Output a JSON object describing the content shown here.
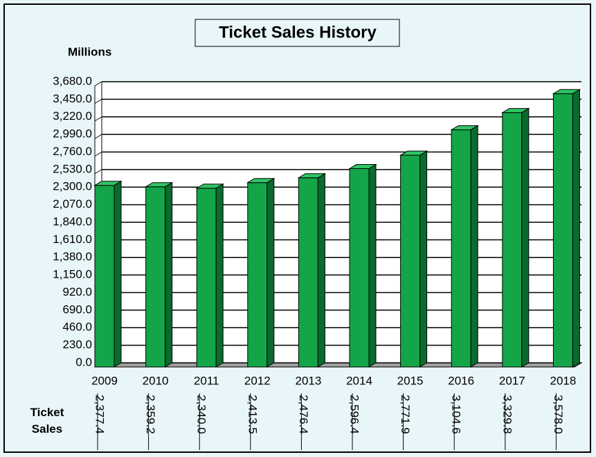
{
  "chart_data": {
    "type": "bar",
    "title": "Ticket Sales History",
    "y_label": "Millions",
    "categories": [
      "2009",
      "2010",
      "2011",
      "2012",
      "2013",
      "2014",
      "2015",
      "2016",
      "2017",
      "2018"
    ],
    "series": [
      {
        "name": "Ticket Sales",
        "color": "#13a548",
        "values": [
          2377.4,
          2359.2,
          2340.0,
          2413.5,
          2476.4,
          2596.4,
          2771.9,
          3104.6,
          3329.8,
          3578.0
        ],
        "value_labels": [
          "2,377.4",
          "2,359.2",
          "2,340.0",
          "2,413.5",
          "2,476.4",
          "2,596.4",
          "2,771.9",
          "3,104.6",
          "3,329.8",
          "3,578.0"
        ]
      }
    ],
    "ylim": [
      0,
      3680
    ],
    "yticks": [
      {
        "value": 0,
        "label": "0.0"
      },
      {
        "value": 230,
        "label": "230.0"
      },
      {
        "value": 460,
        "label": "460.0"
      },
      {
        "value": 690,
        "label": "690.0"
      },
      {
        "value": 920,
        "label": "920.0"
      },
      {
        "value": 1150,
        "label": "1,150.0"
      },
      {
        "value": 1380,
        "label": "1,380.0"
      },
      {
        "value": 1610,
        "label": "1,610.0"
      },
      {
        "value": 1840,
        "label": "1,840.0"
      },
      {
        "value": 2070,
        "label": "2,070.0"
      },
      {
        "value": 2300,
        "label": "2,300.0"
      },
      {
        "value": 2530,
        "label": "2,530.0"
      },
      {
        "value": 2760,
        "label": "2,760.0"
      },
      {
        "value": 2990,
        "label": "2,990.0"
      },
      {
        "value": 3220,
        "label": "3,220.0"
      },
      {
        "value": 3450,
        "label": "3,450.0"
      },
      {
        "value": 3680,
        "label": "3,680.0"
      }
    ],
    "grid": true
  }
}
